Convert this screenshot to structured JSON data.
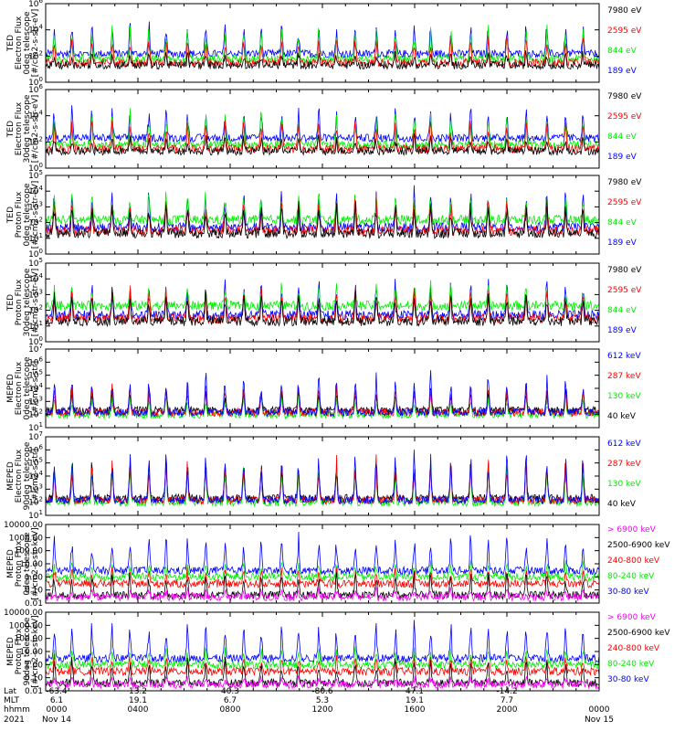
{
  "colors": {
    "black": "#000000",
    "red": "#ff0000",
    "green": "#00ee00",
    "blue": "#0000ff",
    "magenta": "#ff00ff"
  },
  "chart_data": [
    {
      "type": "line",
      "ylabel": [
        "TED",
        "Electron Flux",
        "0deg telescope",
        "[#/cm2-s-str-eV]"
      ],
      "yscale": "log",
      "ylim": [
        1,
        1000000
      ],
      "yticks": [
        {
          "v": 1,
          "base": "10",
          "exp": "0"
        },
        {
          "v": 100,
          "base": "10",
          "exp": "2"
        },
        {
          "v": 10000,
          "base": "10",
          "exp": "4"
        },
        {
          "v": 1000000,
          "base": "10",
          "exp": "6"
        }
      ],
      "series": [
        {
          "name": "7980 eV",
          "color": "#000000",
          "base": 20,
          "peak": 200
        },
        {
          "name": "2595 eV",
          "color": "#ff0000",
          "base": 30,
          "peak": 3000
        },
        {
          "name": "844 eV",
          "color": "#00ee00",
          "base": 60,
          "peak": 20000
        },
        {
          "name": "189 eV",
          "color": "#0000ff",
          "base": 150,
          "peak": 50000
        }
      ]
    },
    {
      "type": "line",
      "ylabel": [
        "TED",
        "Electron Flux",
        "30deg telescope",
        "[#/cm2-s-str-eV]"
      ],
      "yscale": "log",
      "ylim": [
        1,
        1000000
      ],
      "yticks": [
        {
          "v": 1,
          "base": "10",
          "exp": "0"
        },
        {
          "v": 100,
          "base": "10",
          "exp": "2"
        },
        {
          "v": 10000,
          "base": "10",
          "exp": "4"
        },
        {
          "v": 1000000,
          "base": "10",
          "exp": "6"
        }
      ],
      "series": [
        {
          "name": "7980 eV",
          "color": "#000000",
          "base": 20,
          "peak": 300
        },
        {
          "name": "2595 eV",
          "color": "#ff0000",
          "base": 30,
          "peak": 5000
        },
        {
          "name": "844 eV",
          "color": "#00ee00",
          "base": 60,
          "peak": 30000
        },
        {
          "name": "189 eV",
          "color": "#0000ff",
          "base": 200,
          "peak": 60000
        }
      ]
    },
    {
      "type": "line",
      "ylabel": [
        "TED",
        "Proton Flux",
        "0deg telescope",
        "[#/cm2-s-str-eV]"
      ],
      "yscale": "log",
      "ylim": [
        1,
        100000
      ],
      "yticks": [
        {
          "v": 1,
          "base": "10",
          "exp": "0"
        },
        {
          "v": 10,
          "base": "10",
          "exp": "1"
        },
        {
          "v": 100,
          "base": "10",
          "exp": "2"
        },
        {
          "v": 1000,
          "base": "10",
          "exp": "3"
        },
        {
          "v": 10000,
          "base": "10",
          "exp": "4"
        },
        {
          "v": 100000,
          "base": "10",
          "exp": "5"
        }
      ],
      "series": [
        {
          "name": "7980 eV",
          "color": "#000000",
          "base": 20,
          "peak": 3000
        },
        {
          "name": "2595 eV",
          "color": "#ff0000",
          "base": 30,
          "peak": 5000
        },
        {
          "name": "844 eV",
          "color": "#00ee00",
          "base": 150,
          "peak": 10000
        },
        {
          "name": "189 eV",
          "color": "#0000ff",
          "base": 50,
          "peak": 20000
        }
      ]
    },
    {
      "type": "line",
      "ylabel": [
        "TED",
        "Proton Flux",
        "30deg telescope",
        "[#/cm2-s-str-eV]"
      ],
      "yscale": "log",
      "ylim": [
        1,
        100000
      ],
      "yticks": [
        {
          "v": 1,
          "base": "10",
          "exp": "0"
        },
        {
          "v": 10,
          "base": "10",
          "exp": "1"
        },
        {
          "v": 100,
          "base": "10",
          "exp": "2"
        },
        {
          "v": 1000,
          "base": "10",
          "exp": "3"
        },
        {
          "v": 10000,
          "base": "10",
          "exp": "4"
        },
        {
          "v": 100000,
          "base": "10",
          "exp": "5"
        }
      ],
      "series": [
        {
          "name": "7980 eV",
          "color": "#000000",
          "base": 20,
          "peak": 2000
        },
        {
          "name": "2595 eV",
          "color": "#ff0000",
          "base": 30,
          "peak": 3000
        },
        {
          "name": "844 eV",
          "color": "#00ee00",
          "base": 200,
          "peak": 5000
        },
        {
          "name": "189 eV",
          "color": "#0000ff",
          "base": 50,
          "peak": 10000
        }
      ]
    },
    {
      "type": "line",
      "ylabel": [
        "MEPED",
        "Electron Flux",
        "0deg telescope",
        "[#/cm2-s-str]"
      ],
      "yscale": "log",
      "ylim": [
        10,
        10000000
      ],
      "yticks": [
        {
          "v": 10,
          "base": "10",
          "exp": "1"
        },
        {
          "v": 100,
          "base": "10",
          "exp": "2"
        },
        {
          "v": 1000,
          "base": "10",
          "exp": "3"
        },
        {
          "v": 10000,
          "base": "10",
          "exp": "4"
        },
        {
          "v": 100000,
          "base": "10",
          "exp": "5"
        },
        {
          "v": 1000000,
          "base": "10",
          "exp": "6"
        },
        {
          "v": 10000000,
          "base": "10",
          "exp": "7"
        }
      ],
      "series": [
        {
          "name": "612 keV",
          "color": "#0000ff",
          "base": 150,
          "peak": 300000
        },
        {
          "name": "287 keV",
          "color": "#ff0000",
          "base": 150,
          "peak": 30000
        },
        {
          "name": "130 keV",
          "color": "#00ee00",
          "base": 100,
          "peak": 3000
        },
        {
          "name": "40 keV",
          "color": "#000000",
          "base": 200,
          "peak": 10000
        }
      ]
    },
    {
      "type": "line",
      "ylabel": [
        "MEPED",
        "Electron Flux",
        "90deg telescope",
        "[#/cm2-s-str]"
      ],
      "yscale": "log",
      "ylim": [
        10,
        10000000
      ],
      "yticks": [
        {
          "v": 10,
          "base": "10",
          "exp": "1"
        },
        {
          "v": 100,
          "base": "10",
          "exp": "2"
        },
        {
          "v": 1000,
          "base": "10",
          "exp": "3"
        },
        {
          "v": 10000,
          "base": "10",
          "exp": "4"
        },
        {
          "v": 100000,
          "base": "10",
          "exp": "5"
        },
        {
          "v": 1000000,
          "base": "10",
          "exp": "6"
        },
        {
          "v": 10000000,
          "base": "10",
          "exp": "7"
        }
      ],
      "series": [
        {
          "name": "612 keV",
          "color": "#0000ff",
          "base": 150,
          "peak": 1000000
        },
        {
          "name": "287 keV",
          "color": "#ff0000",
          "base": 150,
          "peak": 300000
        },
        {
          "name": "130 keV",
          "color": "#00ee00",
          "base": 100,
          "peak": 100000
        },
        {
          "name": "40 keV",
          "color": "#000000",
          "base": 200,
          "peak": 200000
        }
      ]
    },
    {
      "type": "line",
      "ylabel": [
        "MEPED",
        "Proton Flux",
        "0deg telescope",
        "[#/cm2-s-str-keV]"
      ],
      "yscale": "log",
      "ylim": [
        0.01,
        10000
      ],
      "yticks": [
        {
          "v": 0.01,
          "text": "0.01"
        },
        {
          "v": 0.1,
          "text": "0.10"
        },
        {
          "v": 1,
          "text": "1.00"
        },
        {
          "v": 10,
          "text": "10.00"
        },
        {
          "v": 100,
          "text": "100.00"
        },
        {
          "v": 1000,
          "text": "1000.00"
        },
        {
          "v": 10000,
          "text": "10000.00"
        }
      ],
      "series": [
        {
          "name": "> 6900 keV",
          "color": "#ff00ff",
          "base": 0.03,
          "peak": 0.12
        },
        {
          "name": "2500-6900 keV",
          "color": "#000000",
          "base": 0.04,
          "peak": 3
        },
        {
          "name": "240-800 keV",
          "color": "#ff0000",
          "base": 0.3,
          "peak": 5
        },
        {
          "name": "80-240 keV",
          "color": "#00ee00",
          "base": 1.0,
          "peak": 20
        },
        {
          "name": "30-80 keV",
          "color": "#0000ff",
          "base": 3,
          "peak": 2000
        }
      ]
    },
    {
      "type": "line",
      "ylabel": [
        "MEPED",
        "Proton Flux",
        "90deg telescope",
        "[#/cm2-s-str-keV]"
      ],
      "yscale": "log",
      "ylim": [
        0.01,
        10000
      ],
      "yticks": [
        {
          "v": 0.01,
          "text": "0.01"
        },
        {
          "v": 0.1,
          "text": "0.10"
        },
        {
          "v": 1,
          "text": "1.00"
        },
        {
          "v": 10,
          "text": "10.00"
        },
        {
          "v": 100,
          "text": "100.00"
        },
        {
          "v": 1000,
          "text": "1000.00"
        },
        {
          "v": 10000,
          "text": "10000.00"
        }
      ],
      "series": [
        {
          "name": "> 6900 keV",
          "color": "#ff00ff",
          "base": 0.03,
          "peak": 0.12
        },
        {
          "name": "2500-6900 keV",
          "color": "#000000",
          "base": 0.04,
          "peak": 3
        },
        {
          "name": "240-800 keV",
          "color": "#ff0000",
          "base": 0.3,
          "peak": 5
        },
        {
          "name": "80-240 keV",
          "color": "#00ee00",
          "base": 1.0,
          "peak": 20
        },
        {
          "name": "30-80 keV",
          "color": "#0000ff",
          "base": 3,
          "peak": 3000
        }
      ]
    }
  ],
  "xaxis": {
    "xlim_hours": [
      0,
      24
    ],
    "row_labels": [
      "Lat",
      "MLT",
      "hhmm",
      "2021"
    ],
    "ticks": [
      {
        "hour": 0,
        "lat": "-63.4",
        "mlt": "6.1",
        "hhmm": "0000",
        "date": "Nov 14"
      },
      {
        "hour": 4,
        "lat": "13.2",
        "mlt": "19.1",
        "hhmm": "0400",
        "date": ""
      },
      {
        "hour": 8,
        "lat": "40.3",
        "mlt": "6.7",
        "hhmm": "0800",
        "date": ""
      },
      {
        "hour": 12,
        "lat": "-80.6",
        "mlt": "5.3",
        "hhmm": "1200",
        "date": ""
      },
      {
        "hour": 16,
        "lat": "47.1",
        "mlt": "19.1",
        "hhmm": "1600",
        "date": ""
      },
      {
        "hour": 20,
        "lat": "-14.2",
        "mlt": "7.7",
        "hhmm": "2000",
        "date": ""
      },
      {
        "hour": 24,
        "lat": "",
        "mlt": "",
        "hhmm": "0000",
        "date": "Nov 15"
      }
    ]
  }
}
